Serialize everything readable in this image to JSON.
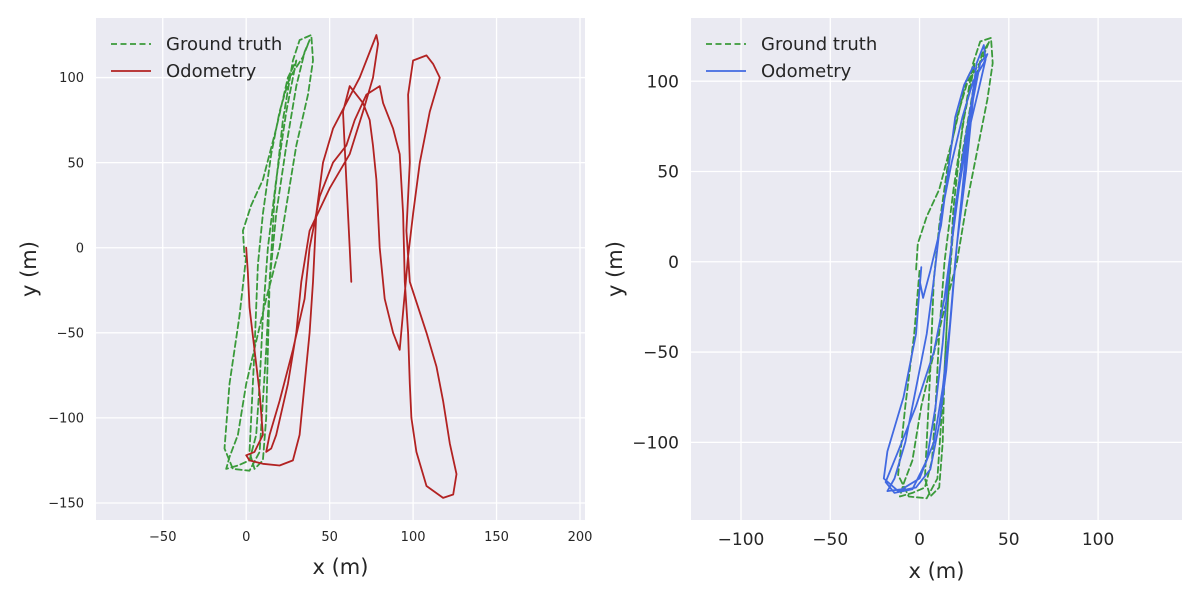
{
  "chart_data": [
    {
      "type": "line",
      "title": "",
      "xlabel": "x (m)",
      "ylabel": "y (m)",
      "xlim": [
        -90,
        203
      ],
      "ylim": [
        -160,
        135
      ],
      "xticks": [
        -50,
        0,
        50,
        100,
        150,
        200
      ],
      "yticks": [
        -150,
        -100,
        -50,
        0,
        50,
        100
      ],
      "grid": true,
      "legend_position": "top-left",
      "background": "#eaeaf2",
      "series": [
        {
          "name": "Ground truth",
          "color": "#3a9a3a",
          "style": "dashed",
          "points": [
            [
              0,
              -5
            ],
            [
              -4,
              -40
            ],
            [
              -10,
              -80
            ],
            [
              -13,
              -118
            ],
            [
              -8,
              -130
            ],
            [
              2,
              -131
            ],
            [
              8,
              -120
            ],
            [
              10,
              -90
            ],
            [
              12,
              -60
            ],
            [
              14,
              -20
            ],
            [
              18,
              20
            ],
            [
              24,
              60
            ],
            [
              30,
              95
            ],
            [
              35,
              115
            ],
            [
              38,
              122
            ],
            [
              34,
              112
            ],
            [
              26,
              100
            ],
            [
              20,
              80
            ],
            [
              15,
              55
            ],
            [
              10,
              20
            ],
            [
              7,
              -10
            ],
            [
              5,
              -60
            ],
            [
              3,
              -100
            ],
            [
              2,
              -120
            ],
            [
              5,
              -130
            ],
            [
              10,
              -125
            ],
            [
              12,
              -100
            ],
            [
              13,
              -60
            ],
            [
              14,
              -20
            ],
            [
              17,
              30
            ],
            [
              22,
              75
            ],
            [
              28,
              110
            ],
            [
              32,
              122
            ],
            [
              39,
              125
            ],
            [
              40,
              110
            ],
            [
              37,
              90
            ],
            [
              30,
              60
            ],
            [
              25,
              30
            ],
            [
              20,
              0
            ],
            [
              12,
              -30
            ],
            [
              6,
              -55
            ],
            [
              0,
              -80
            ],
            [
              -5,
              -110
            ],
            [
              -10,
              -123
            ],
            [
              -12,
              -130
            ],
            [
              -5,
              -128
            ],
            [
              2,
              -125
            ],
            [
              6,
              -110
            ],
            [
              8,
              -80
            ],
            [
              10,
              -40
            ],
            [
              13,
              0
            ],
            [
              18,
              40
            ],
            [
              24,
              80
            ],
            [
              29,
              105
            ],
            [
              30,
              110
            ],
            [
              25,
              100
            ],
            [
              18,
              70
            ],
            [
              10,
              40
            ],
            [
              3,
              25
            ],
            [
              -2,
              10
            ],
            [
              -1,
              -5
            ]
          ]
        },
        {
          "name": "Odometry",
          "color": "#b22222",
          "style": "solid",
          "points": [
            [
              0,
              0
            ],
            [
              1,
              -15
            ],
            [
              2,
              -35
            ],
            [
              5,
              -60
            ],
            [
              8,
              -85
            ],
            [
              10,
              -110
            ],
            [
              5,
              -120
            ],
            [
              0,
              -122
            ],
            [
              2,
              -125
            ],
            [
              10,
              -127
            ],
            [
              20,
              -128
            ],
            [
              28,
              -125
            ],
            [
              32,
              -110
            ],
            [
              35,
              -80
            ],
            [
              38,
              -50
            ],
            [
              40,
              -20
            ],
            [
              42,
              20
            ],
            [
              46,
              50
            ],
            [
              52,
              70
            ],
            [
              60,
              85
            ],
            [
              68,
              100
            ],
            [
              74,
              115
            ],
            [
              78,
              125
            ],
            [
              79,
              120
            ],
            [
              76,
              100
            ],
            [
              70,
              80
            ],
            [
              62,
              55
            ],
            [
              50,
              35
            ],
            [
              38,
              10
            ],
            [
              33,
              -20
            ],
            [
              30,
              -50
            ],
            [
              25,
              -80
            ],
            [
              18,
              -110
            ],
            [
              15,
              -118
            ],
            [
              12,
              -120
            ],
            [
              14,
              -110
            ],
            [
              20,
              -90
            ],
            [
              28,
              -60
            ],
            [
              35,
              -30
            ],
            [
              38,
              0
            ],
            [
              44,
              30
            ],
            [
              52,
              50
            ],
            [
              60,
              60
            ],
            [
              65,
              75
            ],
            [
              72,
              90
            ],
            [
              80,
              95
            ],
            [
              82,
              85
            ],
            [
              88,
              70
            ],
            [
              92,
              55
            ],
            [
              94,
              20
            ],
            [
              95,
              -20
            ],
            [
              97,
              -50
            ],
            [
              98,
              -80
            ],
            [
              99,
              -100
            ],
            [
              102,
              -120
            ],
            [
              108,
              -140
            ],
            [
              118,
              -147
            ],
            [
              124,
              -145
            ],
            [
              126,
              -133
            ],
            [
              122,
              -115
            ],
            [
              118,
              -90
            ],
            [
              114,
              -70
            ],
            [
              108,
              -50
            ],
            [
              98,
              -20
            ],
            [
              96,
              10
            ],
            [
              98,
              50
            ],
            [
              97,
              90
            ],
            [
              100,
              110
            ],
            [
              108,
              113
            ],
            [
              112,
              108
            ],
            [
              116,
              100
            ],
            [
              110,
              80
            ],
            [
              104,
              50
            ],
            [
              100,
              20
            ],
            [
              97,
              -5
            ],
            [
              92,
              -60
            ],
            [
              88,
              -50
            ],
            [
              83,
              -30
            ],
            [
              80,
              0
            ],
            [
              78,
              40
            ],
            [
              76,
              60
            ],
            [
              74,
              75
            ],
            [
              70,
              85
            ],
            [
              62,
              95
            ],
            [
              58,
              80
            ],
            [
              60,
              40
            ],
            [
              62,
              0
            ],
            [
              63,
              -20
            ]
          ]
        }
      ]
    },
    {
      "type": "line",
      "title": "",
      "xlabel": "x (m)",
      "ylabel": "y (m)",
      "xlim": [
        -128,
        147
      ],
      "ylim": [
        -143,
        135
      ],
      "xticks": [
        -100,
        -50,
        0,
        50,
        100
      ],
      "yticks": [
        -100,
        -50,
        0,
        50,
        100
      ],
      "grid": true,
      "legend_position": "top-left",
      "background": "#eaeaf2",
      "series": [
        {
          "name": "Ground truth",
          "color": "#3a9a3a",
          "style": "dashed",
          "points": [
            [
              0,
              -5
            ],
            [
              -3,
              -40
            ],
            [
              -8,
              -80
            ],
            [
              -12,
              -118
            ],
            [
              -6,
              -130
            ],
            [
              4,
              -131
            ],
            [
              10,
              -120
            ],
            [
              12,
              -90
            ],
            [
              14,
              -60
            ],
            [
              16,
              -20
            ],
            [
              19,
              20
            ],
            [
              24,
              60
            ],
            [
              30,
              95
            ],
            [
              35,
              115
            ],
            [
              39,
              122
            ],
            [
              35,
              112
            ],
            [
              27,
              100
            ],
            [
              21,
              80
            ],
            [
              16,
              55
            ],
            [
              11,
              20
            ],
            [
              8,
              -10
            ],
            [
              6,
              -60
            ],
            [
              4,
              -100
            ],
            [
              3,
              -120
            ],
            [
              6,
              -130
            ],
            [
              11,
              -125
            ],
            [
              13,
              -100
            ],
            [
              14,
              -60
            ],
            [
              16,
              -20
            ],
            [
              19,
              30
            ],
            [
              24,
              75
            ],
            [
              30,
              110
            ],
            [
              34,
              122
            ],
            [
              40,
              124
            ],
            [
              41,
              110
            ],
            [
              38,
              90
            ],
            [
              32,
              60
            ],
            [
              26,
              30
            ],
            [
              21,
              0
            ],
            [
              13,
              -30
            ],
            [
              7,
              -55
            ],
            [
              1,
              -80
            ],
            [
              -4,
              -110
            ],
            [
              -9,
              -123
            ],
            [
              -11,
              -130
            ],
            [
              -4,
              -128
            ],
            [
              3,
              -125
            ],
            [
              7,
              -110
            ],
            [
              9,
              -80
            ],
            [
              11,
              -40
            ],
            [
              14,
              0
            ],
            [
              19,
              40
            ],
            [
              25,
              80
            ],
            [
              30,
              105
            ],
            [
              31,
              110
            ],
            [
              26,
              100
            ],
            [
              19,
              70
            ],
            [
              11,
              40
            ],
            [
              4,
              25
            ],
            [
              -1,
              10
            ],
            [
              -2,
              -5
            ]
          ]
        },
        {
          "name": "Odometry",
          "color": "#4169e1",
          "style": "solid",
          "points": [
            [
              1,
              -3
            ],
            [
              -2,
              -40
            ],
            [
              -9,
              -75
            ],
            [
              -18,
              -105
            ],
            [
              -20,
              -120
            ],
            [
              -12,
              -127
            ],
            [
              -2,
              -125
            ],
            [
              6,
              -115
            ],
            [
              11,
              -90
            ],
            [
              15,
              -60
            ],
            [
              18,
              -25
            ],
            [
              21,
              10
            ],
            [
              26,
              50
            ],
            [
              30,
              90
            ],
            [
              34,
              110
            ],
            [
              38,
              115
            ],
            [
              36,
              110
            ],
            [
              30,
              100
            ],
            [
              24,
              80
            ],
            [
              18,
              55
            ],
            [
              12,
              25
            ],
            [
              8,
              -10
            ],
            [
              4,
              -40
            ],
            [
              -2,
              -70
            ],
            [
              -8,
              -100
            ],
            [
              -14,
              -120
            ],
            [
              -18,
              -127
            ],
            [
              -10,
              -126
            ],
            [
              0,
              -120
            ],
            [
              8,
              -100
            ],
            [
              13,
              -70
            ],
            [
              17,
              -35
            ],
            [
              20,
              0
            ],
            [
              24,
              40
            ],
            [
              28,
              80
            ],
            [
              32,
              110
            ],
            [
              36,
              120
            ],
            [
              37,
              112
            ],
            [
              33,
              95
            ],
            [
              27,
              70
            ],
            [
              22,
              40
            ],
            [
              18,
              10
            ],
            [
              14,
              -20
            ],
            [
              8,
              -50
            ],
            [
              -2,
              -80
            ],
            [
              -12,
              -105
            ],
            [
              -19,
              -122
            ],
            [
              -14,
              -128
            ],
            [
              -4,
              -126
            ],
            [
              4,
              -110
            ],
            [
              9,
              -80
            ],
            [
              13,
              -45
            ],
            [
              16,
              -10
            ],
            [
              20,
              30
            ],
            [
              26,
              70
            ],
            [
              32,
              105
            ],
            [
              30,
              108
            ],
            [
              25,
              98
            ],
            [
              20,
              80
            ],
            [
              16,
              50
            ],
            [
              12,
              20
            ],
            [
              6,
              -5
            ],
            [
              2,
              -20
            ],
            [
              0,
              -10
            ]
          ]
        }
      ]
    }
  ]
}
